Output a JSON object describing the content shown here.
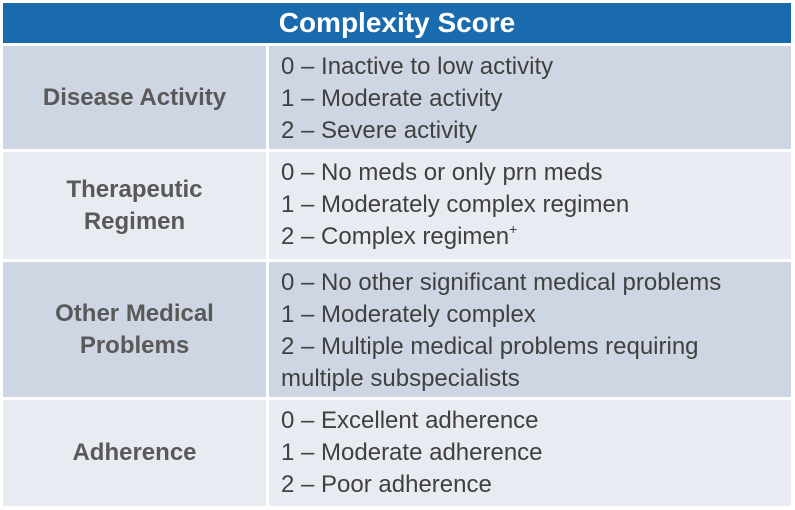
{
  "title": "Complexity Score",
  "rows": [
    {
      "label_lines": [
        "Disease Activity"
      ],
      "items": [
        "0 – Inactive to low activity",
        "1 – Moderate activity",
        "2 – Severe activity"
      ]
    },
    {
      "label_lines": [
        "Therapeutic",
        "Regimen"
      ],
      "items": [
        "0 – No meds or only prn meds",
        "1 – Moderately complex regimen",
        "2 – Complex regimen"
      ],
      "superscript": "+"
    },
    {
      "label_lines": [
        "Other Medical",
        "Problems"
      ],
      "items": [
        "0 – No other significant medical problems",
        "1 – Moderately complex",
        "2 – Multiple medical problems requiring multiple subspecialists"
      ]
    },
    {
      "label_lines": [
        "Adherence"
      ],
      "items": [
        "0 – Excellent adherence",
        "1 – Moderate adherence",
        "2 – Poor adherence"
      ]
    }
  ],
  "colors": {
    "header_bg": "#1a6aae",
    "row_dark": "#cfd6e3",
    "row_light": "#e8ebf2",
    "label_text": "#595959",
    "item_text": "#404040"
  }
}
